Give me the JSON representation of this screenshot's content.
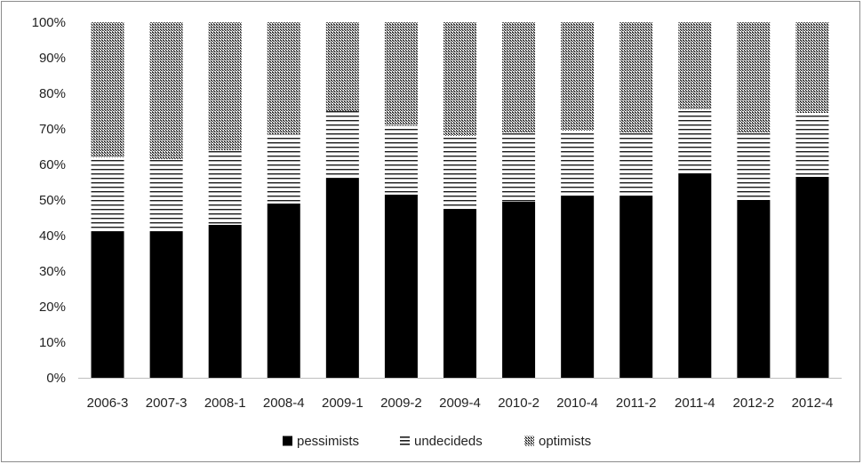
{
  "chart_data": {
    "type": "bar",
    "stacked": true,
    "percent_stacked": true,
    "title": "",
    "xlabel": "",
    "ylabel": "",
    "ylim": [
      0,
      100
    ],
    "y_ticks": [
      "0%",
      "10%",
      "20%",
      "30%",
      "40%",
      "50%",
      "60%",
      "70%",
      "80%",
      "90%",
      "100%"
    ],
    "grid": false,
    "legend_position": "bottom",
    "categories": [
      "2006-3",
      "2007-3",
      "2008-1",
      "2008-4",
      "2009-1",
      "2009-2",
      "2009-4",
      "2010-2",
      "2010-4",
      "2011-2",
      "2011-4",
      "2012-2",
      "2012-4"
    ],
    "series": [
      {
        "name": "pessimists",
        "pattern": "solid",
        "color": "#000000",
        "values": [
          41,
          41,
          43,
          49,
          56,
          51.5,
          47.5,
          49.5,
          51,
          51,
          57.5,
          50,
          56.5
        ]
      },
      {
        "name": "undecideds",
        "pattern": "horizontal-stripes",
        "color": "#000000",
        "values": [
          21,
          20.5,
          21,
          19.5,
          19,
          19.5,
          20.5,
          19.5,
          18.5,
          18,
          18,
          19,
          18
        ]
      },
      {
        "name": "optimists",
        "pattern": "dotted-grey",
        "color": "#7f7f7f",
        "values": [
          38,
          38.5,
          36,
          31.5,
          25,
          29,
          32,
          31,
          30.5,
          31,
          24.5,
          31,
          25.5
        ]
      }
    ]
  }
}
